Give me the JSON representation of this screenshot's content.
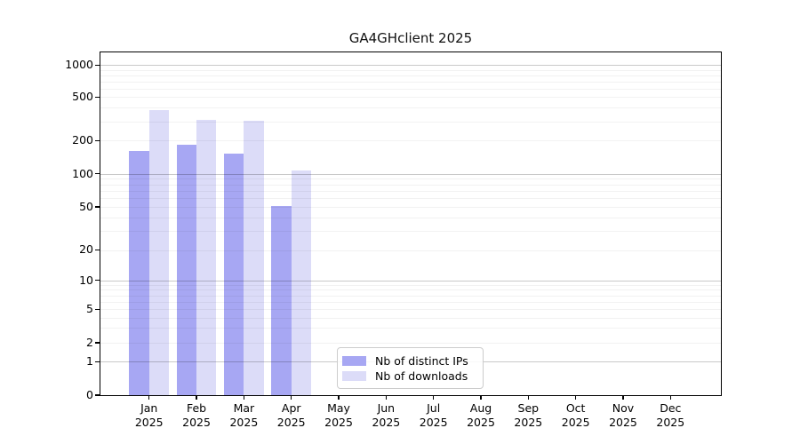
{
  "page": {
    "background": "#ffffff"
  },
  "chart_data": {
    "type": "bar",
    "title": "GA4GHclient 2025",
    "categories": [
      "Jan 2025",
      "Feb 2025",
      "Mar 2025",
      "Apr 2025",
      "May 2025",
      "Jun 2025",
      "Jul 2025",
      "Aug 2025",
      "Sep 2025",
      "Oct 2025",
      "Nov 2025",
      "Dec 2025"
    ],
    "series": [
      {
        "name": "Nb of distinct IPs",
        "color": "#a7a7f3",
        "values": [
          160,
          185,
          153,
          51,
          null,
          null,
          null,
          null,
          null,
          null,
          null,
          null
        ]
      },
      {
        "name": "Nb of downloads",
        "color": "#dcdcf8",
        "values": [
          380,
          310,
          305,
          107,
          null,
          null,
          null,
          null,
          null,
          null,
          null,
          null
        ]
      }
    ],
    "y_axis": {
      "scale": "symlog",
      "tick_labels": [
        1000,
        500,
        200,
        100,
        50,
        20,
        10,
        5,
        2,
        1,
        0
      ],
      "major_gridline_values": [
        1000,
        100,
        10,
        1
      ],
      "ylim": [
        0,
        1000
      ]
    },
    "x_axis": {
      "tick_label_lines": 2
    },
    "legend": {
      "position": "inside-bottom-center"
    },
    "grid": {
      "major": true,
      "minor": true
    },
    "xlabel": "",
    "ylabel": ""
  },
  "colors": {
    "series_ips": "#a7a7f3",
    "series_downloads": "#dcdcf8",
    "major_grid": "#cccccc",
    "minor_grid": "#f2f2f2",
    "axis": "#000000",
    "background": "#ffffff"
  }
}
